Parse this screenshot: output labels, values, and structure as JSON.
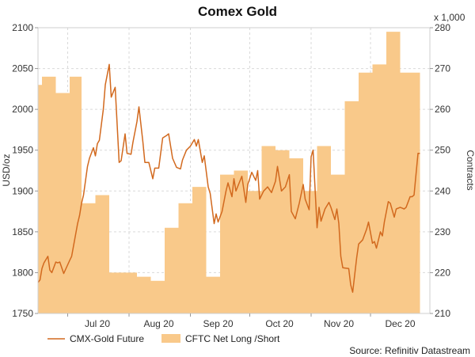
{
  "chart_data": {
    "type": "line+area",
    "title": "Comex Gold",
    "left_axis": {
      "label": "USD/oz",
      "ylim": [
        1750,
        2100
      ],
      "ticks": [
        1750,
        1800,
        1850,
        1900,
        1950,
        2000,
        2050,
        2100
      ]
    },
    "right_axis": {
      "label": "Contracts",
      "multiplier_label": "x 1,000",
      "ylim": [
        210,
        280
      ],
      "ticks": [
        210,
        220,
        230,
        240,
        250,
        260,
        270,
        280
      ]
    },
    "x_axis": {
      "range": [
        "2020-06-16",
        "2020-12-31"
      ],
      "month_labels": [
        {
          "label": "Jul 20",
          "date": "2020-07-16"
        },
        {
          "label": "Aug 20",
          "date": "2020-08-16"
        },
        {
          "label": "Sep 20",
          "date": "2020-09-15"
        },
        {
          "label": "Oct 20",
          "date": "2020-10-16"
        },
        {
          "label": "Nov 20",
          "date": "2020-11-15"
        },
        {
          "label": "Dec 20",
          "date": "2020-12-16"
        }
      ],
      "month_boundaries": [
        "2020-07-01",
        "2020-08-01",
        "2020-09-01",
        "2020-10-01",
        "2020-11-01",
        "2020-12-01"
      ]
    },
    "series": [
      {
        "name": "CMX-Gold Future",
        "axis": "left",
        "style": "line",
        "color": "#d2691e",
        "points": [
          [
            "2020-06-16",
            1788
          ],
          [
            "2020-06-17",
            1791
          ],
          [
            "2020-06-18",
            1805
          ],
          [
            "2020-06-19",
            1812
          ],
          [
            "2020-06-21",
            1820
          ],
          [
            "2020-06-22",
            1803
          ],
          [
            "2020-06-23",
            1800
          ],
          [
            "2020-06-25",
            1813
          ],
          [
            "2020-06-26",
            1812
          ],
          [
            "2020-06-27",
            1813
          ],
          [
            "2020-06-29",
            1799
          ],
          [
            "2020-07-02",
            1815
          ],
          [
            "2020-07-03",
            1820
          ],
          [
            "2020-07-06",
            1860
          ],
          [
            "2020-07-07",
            1870
          ],
          [
            "2020-07-08",
            1885
          ],
          [
            "2020-07-09",
            1895
          ],
          [
            "2020-07-11",
            1930
          ],
          [
            "2020-07-12",
            1940
          ],
          [
            "2020-07-14",
            1953
          ],
          [
            "2020-07-15",
            1943
          ],
          [
            "2020-07-16",
            1958
          ],
          [
            "2020-07-17",
            1962
          ],
          [
            "2020-07-19",
            2000
          ],
          [
            "2020-07-20",
            2030
          ],
          [
            "2020-07-22",
            2055
          ],
          [
            "2020-07-23",
            2015
          ],
          [
            "2020-07-25",
            2027
          ],
          [
            "2020-07-27",
            1935
          ],
          [
            "2020-07-28",
            1937
          ],
          [
            "2020-07-30",
            1970
          ],
          [
            "2020-07-31",
            1946
          ],
          [
            "2020-08-02",
            1945
          ],
          [
            "2020-08-03",
            1960
          ],
          [
            "2020-08-05",
            1985
          ],
          [
            "2020-08-06",
            2003
          ],
          [
            "2020-08-08",
            1960
          ],
          [
            "2020-08-09",
            1935
          ],
          [
            "2020-08-11",
            1935
          ],
          [
            "2020-08-13",
            1915
          ],
          [
            "2020-08-14",
            1928
          ],
          [
            "2020-08-16",
            1928
          ],
          [
            "2020-08-18",
            1965
          ],
          [
            "2020-08-20",
            1968
          ],
          [
            "2020-08-21",
            1970
          ],
          [
            "2020-08-23",
            1940
          ],
          [
            "2020-08-25",
            1929
          ],
          [
            "2020-08-27",
            1927
          ],
          [
            "2020-08-28",
            1938
          ],
          [
            "2020-08-30",
            1950
          ],
          [
            "2020-09-01",
            1955
          ],
          [
            "2020-09-03",
            1963
          ],
          [
            "2020-09-04",
            1955
          ],
          [
            "2020-09-05",
            1963
          ],
          [
            "2020-09-07",
            1935
          ],
          [
            "2020-09-08",
            1943
          ],
          [
            "2020-09-10",
            1905
          ],
          [
            "2020-09-11",
            1897
          ],
          [
            "2020-09-13",
            1860
          ],
          [
            "2020-09-14",
            1872
          ],
          [
            "2020-09-15",
            1862
          ],
          [
            "2020-09-17",
            1875
          ],
          [
            "2020-09-19",
            1900
          ],
          [
            "2020-09-20",
            1910
          ],
          [
            "2020-09-22",
            1893
          ],
          [
            "2020-09-23",
            1915
          ],
          [
            "2020-09-24",
            1900
          ],
          [
            "2020-09-26",
            1912
          ],
          [
            "2020-09-27",
            1918
          ],
          [
            "2020-09-29",
            1886
          ],
          [
            "2020-09-30",
            1908
          ],
          [
            "2020-10-02",
            1923
          ],
          [
            "2020-10-04",
            1913
          ],
          [
            "2020-10-05",
            1925
          ],
          [
            "2020-10-06",
            1890
          ],
          [
            "2020-10-08",
            1900
          ],
          [
            "2020-10-10",
            1905
          ],
          [
            "2020-10-12",
            1898
          ],
          [
            "2020-10-14",
            1912
          ],
          [
            "2020-10-15",
            1930
          ],
          [
            "2020-10-17",
            1900
          ],
          [
            "2020-10-19",
            1905
          ],
          [
            "2020-10-21",
            1920
          ],
          [
            "2020-10-22",
            1875
          ],
          [
            "2020-10-24",
            1866
          ],
          [
            "2020-10-26",
            1885
          ],
          [
            "2020-10-28",
            1908
          ],
          [
            "2020-10-29",
            1890
          ],
          [
            "2020-10-31",
            1877
          ],
          [
            "2020-11-01",
            1942
          ],
          [
            "2020-11-02",
            1950
          ],
          [
            "2020-11-04",
            1855
          ],
          [
            "2020-11-05",
            1880
          ],
          [
            "2020-11-06",
            1863
          ],
          [
            "2020-11-08",
            1878
          ],
          [
            "2020-11-10",
            1886
          ],
          [
            "2020-11-11",
            1880
          ],
          [
            "2020-11-13",
            1865
          ],
          [
            "2020-11-14",
            1878
          ],
          [
            "2020-11-15",
            1860
          ],
          [
            "2020-11-16",
            1820
          ],
          [
            "2020-11-17",
            1806
          ],
          [
            "2020-11-20",
            1805
          ],
          [
            "2020-11-21",
            1785
          ],
          [
            "2020-11-22",
            1776
          ],
          [
            "2020-11-24",
            1818
          ],
          [
            "2020-11-25",
            1835
          ],
          [
            "2020-11-27",
            1840
          ],
          [
            "2020-11-29",
            1853
          ],
          [
            "2020-11-30",
            1862
          ],
          [
            "2020-12-02",
            1836
          ],
          [
            "2020-12-03",
            1838
          ],
          [
            "2020-12-04",
            1830
          ],
          [
            "2020-12-06",
            1850
          ],
          [
            "2020-12-07",
            1845
          ],
          [
            "2020-12-08",
            1862
          ],
          [
            "2020-12-10",
            1887
          ],
          [
            "2020-12-11",
            1885
          ],
          [
            "2020-12-13",
            1868
          ],
          [
            "2020-12-14",
            1878
          ],
          [
            "2020-12-16",
            1880
          ],
          [
            "2020-12-18",
            1878
          ],
          [
            "2020-12-19",
            1880
          ],
          [
            "2020-12-21",
            1893
          ],
          [
            "2020-12-22",
            1893
          ],
          [
            "2020-12-23",
            1895
          ],
          [
            "2020-12-25",
            1946
          ],
          [
            "2020-12-26",
            1946
          ]
        ]
      },
      {
        "name": "CFTC Net Long /Short",
        "axis": "right",
        "style": "step-area",
        "color": "#f9c98a",
        "points": [
          [
            "2020-06-16",
            266
          ],
          [
            "2020-06-18",
            268
          ],
          [
            "2020-06-25",
            264
          ],
          [
            "2020-07-02",
            268
          ],
          [
            "2020-07-08",
            237
          ],
          [
            "2020-07-15",
            239
          ],
          [
            "2020-07-22",
            220
          ],
          [
            "2020-07-29",
            220
          ],
          [
            "2020-08-05",
            219
          ],
          [
            "2020-08-12",
            218
          ],
          [
            "2020-08-19",
            231
          ],
          [
            "2020-08-26",
            237
          ],
          [
            "2020-09-02",
            241
          ],
          [
            "2020-09-09",
            219
          ],
          [
            "2020-09-16",
            244
          ],
          [
            "2020-09-23",
            245
          ],
          [
            "2020-09-30",
            240
          ],
          [
            "2020-10-07",
            251
          ],
          [
            "2020-10-14",
            250
          ],
          [
            "2020-10-21",
            248
          ],
          [
            "2020-10-28",
            240
          ],
          [
            "2020-11-04",
            251
          ],
          [
            "2020-11-11",
            244
          ],
          [
            "2020-11-18",
            262
          ],
          [
            "2020-11-25",
            269
          ],
          [
            "2020-12-02",
            271
          ],
          [
            "2020-12-09",
            279
          ],
          [
            "2020-12-16",
            269
          ],
          [
            "2020-12-26",
            269
          ]
        ]
      }
    ],
    "grid": true,
    "legend": {
      "position": "bottom-left"
    },
    "source": "Source: Refinitiv Datastream"
  }
}
